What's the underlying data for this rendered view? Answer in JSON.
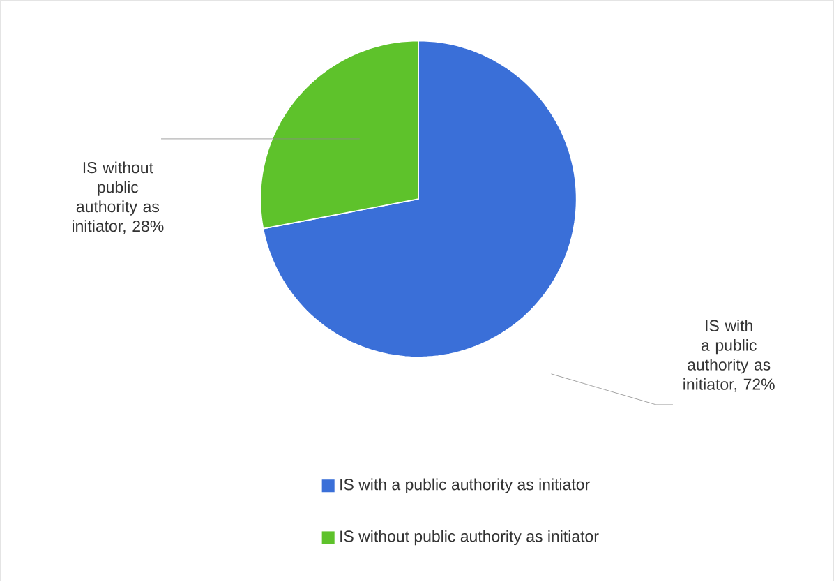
{
  "chart_data": {
    "type": "pie",
    "categories": [
      "IS with a public authority as initiator",
      "IS without public authority as initiator"
    ],
    "values": [
      72,
      28
    ],
    "value_labels": [
      "IS with a public authority as initiator, 72%",
      "IS without public authority as initiator, 28%"
    ],
    "colors": [
      "#3a6fd8",
      "#5ec22b"
    ],
    "legend": "bottom"
  }
}
